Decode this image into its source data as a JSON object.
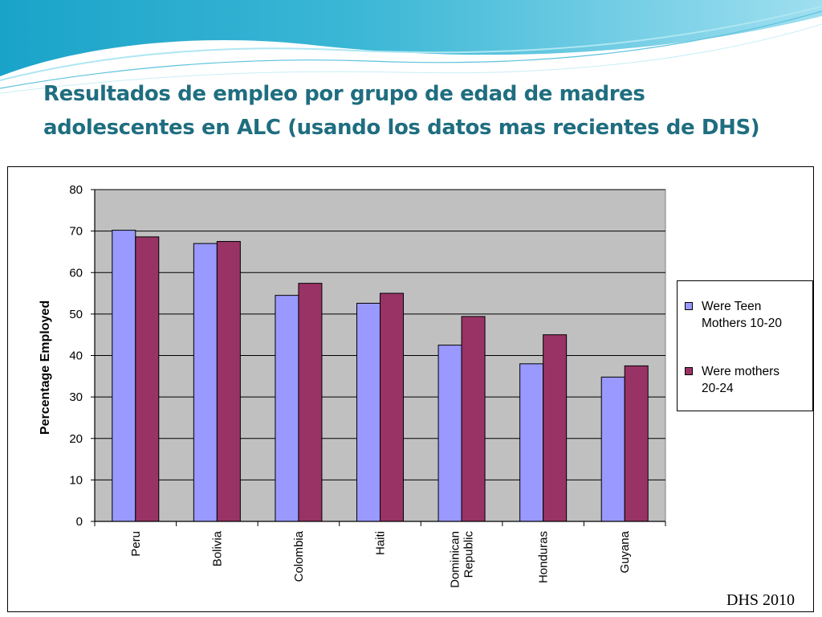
{
  "slide": {
    "title": "Resultados de empleo por grupo de edad de madres adolescentes en ALC (usando los datos mas recientes de DHS)",
    "source_note": "DHS 2010"
  },
  "colors": {
    "title": "#1f6e80",
    "plot_background": "#c0c0c0",
    "series_teen": "#9999ff",
    "series_adult": "#993366",
    "banner_top": "#1aa3c9",
    "banner_light": "#aee6f2"
  },
  "chart_data": {
    "type": "bar",
    "title": "",
    "xlabel": "",
    "ylabel": "Percentage Employed",
    "ylim": [
      0,
      80
    ],
    "y_ticks": [
      0,
      10,
      20,
      30,
      40,
      50,
      60,
      70,
      80
    ],
    "grid": true,
    "legend_position": "right",
    "categories": [
      "Peru",
      "Bolivia",
      "Colombia",
      "Haiti",
      "Dominican Republic",
      "Honduras",
      "Guyana"
    ],
    "category_lines": [
      [
        "Peru"
      ],
      [
        "Bolivia"
      ],
      [
        "Colombia"
      ],
      [
        "Haiti"
      ],
      [
        "Dominican",
        "Republic"
      ],
      [
        "Honduras"
      ],
      [
        "Guyana"
      ]
    ],
    "series": [
      {
        "name": "Were Teen Mothers 10-20",
        "name_lines": [
          "Were Teen",
          "Mothers 10-20"
        ],
        "color": "#9999ff",
        "values": [
          70.2,
          67.0,
          54.5,
          52.6,
          42.5,
          38.0,
          34.8
        ]
      },
      {
        "name": "Were mothers 20-24",
        "name_lines": [
          "Were mothers",
          "20-24"
        ],
        "color": "#993366",
        "values": [
          68.6,
          67.5,
          57.4,
          55.0,
          49.4,
          45.0,
          37.5
        ]
      }
    ]
  }
}
